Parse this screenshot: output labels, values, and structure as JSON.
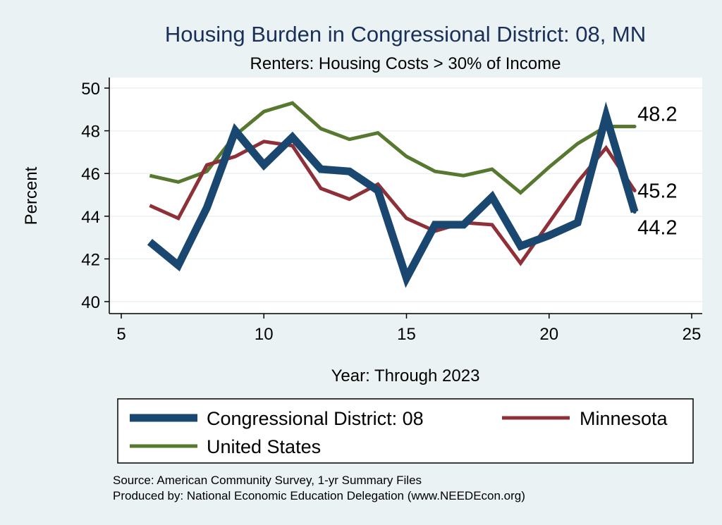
{
  "chart_data": {
    "type": "line",
    "title": "Housing Burden in Congressional District:  08, MN",
    "subtitle": "Renters: Housing Costs > 30% of Income",
    "xlabel": "Year: Through 2023",
    "ylabel": "Percent",
    "xlim": [
      5,
      25
    ],
    "ylim": [
      40,
      50
    ],
    "xticks": [
      5,
      10,
      15,
      20,
      25
    ],
    "yticks": [
      40,
      42,
      44,
      46,
      48,
      50
    ],
    "x": [
      6,
      7,
      8,
      9,
      10,
      11,
      12,
      13,
      14,
      15,
      16,
      17,
      18,
      19,
      20,
      21,
      22,
      23
    ],
    "series": [
      {
        "name": "Congressional District:  08",
        "color": "#1a4770",
        "values": [
          42.8,
          41.7,
          44.4,
          48.0,
          46.4,
          47.7,
          46.2,
          46.1,
          45.2,
          41.1,
          43.6,
          43.6,
          44.9,
          42.6,
          43.1,
          43.7,
          48.7,
          44.2
        ],
        "end_label": "44.2"
      },
      {
        "name": "Minnesota",
        "color": "#8f3039",
        "values": [
          44.5,
          43.9,
          46.4,
          46.8,
          47.5,
          47.3,
          45.3,
          44.8,
          45.5,
          43.9,
          43.3,
          43.7,
          43.6,
          41.8,
          43.7,
          45.6,
          47.2,
          45.2
        ],
        "end_label": "45.2"
      },
      {
        "name": "United States",
        "color": "#56782f",
        "values": [
          45.9,
          45.6,
          46.1,
          47.8,
          48.9,
          49.3,
          48.1,
          47.6,
          47.9,
          46.8,
          46.1,
          45.9,
          46.2,
          45.1,
          46.3,
          47.4,
          48.2,
          48.2
        ],
        "end_label": "48.2"
      }
    ],
    "legend": {
      "placement": "bottom",
      "entries": [
        "Congressional District:  08",
        "Minnesota",
        "United States"
      ]
    }
  },
  "notes": {
    "source": "Source: American Community Survey, 1-yr Summary Files",
    "produced_by": "Produced by: National Economic Education Delegation (www.NEEDEcon.org)"
  }
}
